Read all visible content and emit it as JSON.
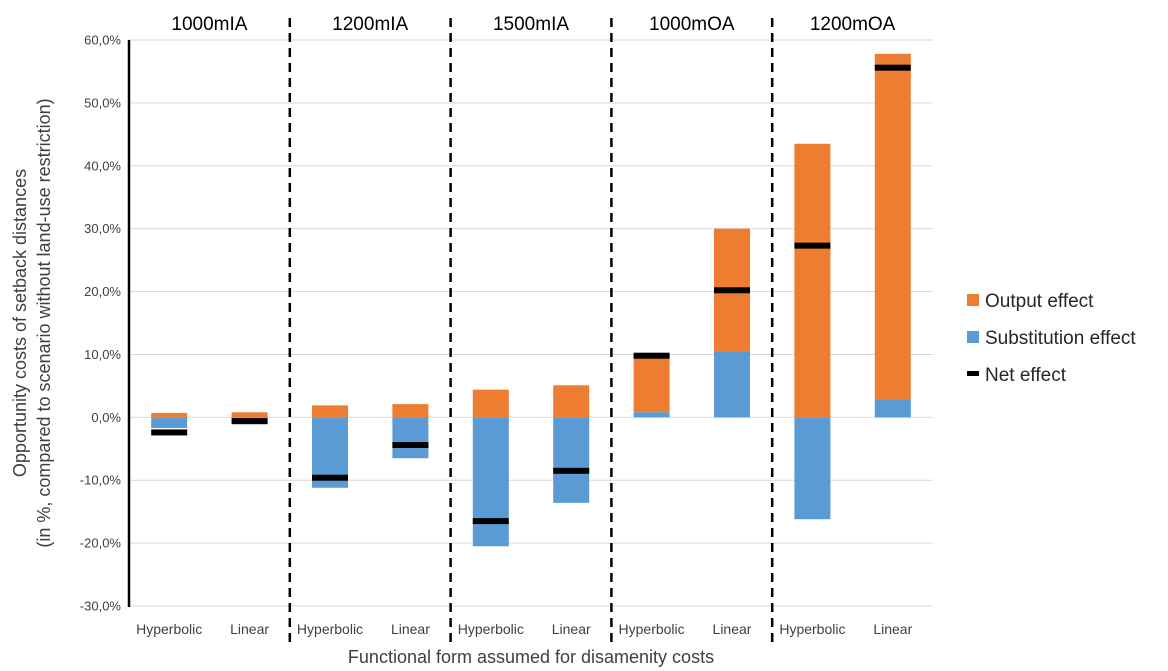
{
  "chart_data": {
    "type": "bar",
    "stacked": true,
    "groups": [
      "1000mIA",
      "1200mIA",
      "1500mIA",
      "1000mOA",
      "1200mOA"
    ],
    "categories": [
      "Hyperbolic",
      "Linear"
    ],
    "series": [
      {
        "name": "Output effect",
        "color": "#ED7D31",
        "values": [
          [
            0.7,
            0.8
          ],
          [
            1.9,
            2.1
          ],
          [
            4.4,
            5.1
          ],
          [
            9.3,
            19.6
          ],
          [
            43.5,
            54.9
          ]
        ]
      },
      {
        "name": "Substitution effect",
        "color": "#5B9BD5",
        "values": [
          [
            -1.7,
            -1.1
          ],
          [
            -11.2,
            -6.5
          ],
          [
            -20.5,
            -13.6
          ],
          [
            0.8,
            10.4
          ],
          [
            -16.2,
            2.9
          ]
        ]
      },
      {
        "name": "Net effect",
        "color": "#000000",
        "values": [
          [
            -2.4,
            -0.6
          ],
          [
            -9.6,
            -4.4
          ],
          [
            -16.5,
            -8.5
          ],
          [
            9.8,
            20.2
          ],
          [
            27.3,
            55.6
          ]
        ]
      }
    ],
    "xlabel": "Functional form assumed for disamenity costs",
    "ylabel_lines": [
      "Opportunity costs of setback distances",
      "(in %, compared to scenario without land-use restriction)"
    ],
    "ylim": [
      -30,
      60
    ],
    "yticks": [
      60,
      50,
      40,
      30,
      20,
      10,
      0,
      -10,
      -20,
      -30
    ],
    "ytick_labels": [
      "60,0%",
      "50,0%",
      "40,0%",
      "30,0%",
      "20,0%",
      "10,0%",
      "0,0%",
      "-10,0%",
      "-20,0%",
      "-30,0%"
    ],
    "grid": true,
    "legend_position": "right",
    "separators": "dashed vertical lines between groups"
  }
}
